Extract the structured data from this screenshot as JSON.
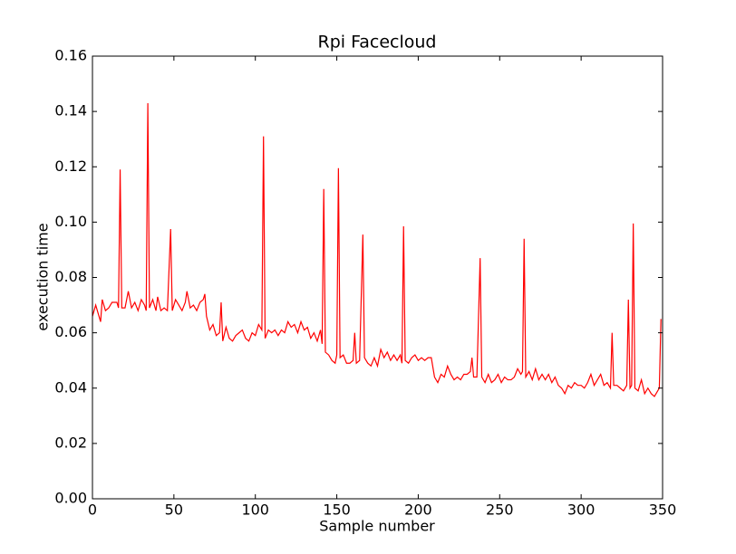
{
  "chart_data": {
    "type": "line",
    "title": "Rpi Facecloud",
    "x_label": "Sample number",
    "y_label": "execution time",
    "color": "#ff0000",
    "x": [
      0,
      2,
      4,
      5,
      6,
      8,
      10,
      12,
      15,
      16,
      17,
      18,
      20,
      22,
      24,
      26,
      28,
      30,
      32,
      33,
      34,
      35,
      37,
      39,
      40,
      42,
      44,
      46,
      48,
      49,
      51,
      53,
      55,
      57,
      58,
      60,
      62,
      64,
      66,
      68,
      69,
      70,
      72,
      74,
      76,
      78,
      79,
      80,
      82,
      84,
      86,
      88,
      90,
      92,
      94,
      96,
      98,
      100,
      102,
      104,
      105,
      106,
      108,
      110,
      112,
      114,
      116,
      118,
      120,
      122,
      124,
      126,
      128,
      130,
      132,
      134,
      136,
      138,
      140,
      141,
      142,
      143,
      145,
      147,
      149,
      150,
      151,
      152,
      154,
      156,
      158,
      160,
      161,
      162,
      164,
      166,
      167,
      169,
      171,
      173,
      175,
      177,
      179,
      181,
      183,
      185,
      187,
      189,
      190,
      191,
      192,
      194,
      196,
      198,
      200,
      202,
      204,
      206,
      208,
      210,
      212,
      214,
      216,
      218,
      220,
      222,
      224,
      226,
      228,
      230,
      232,
      233,
      234,
      236,
      238,
      239,
      241,
      243,
      245,
      247,
      249,
      251,
      253,
      255,
      257,
      259,
      261,
      263,
      264,
      265,
      266,
      268,
      270,
      272,
      274,
      276,
      278,
      280,
      282,
      284,
      286,
      288,
      290,
      292,
      294,
      296,
      298,
      300,
      302,
      304,
      306,
      308,
      310,
      312,
      314,
      316,
      318,
      319,
      320,
      322,
      324,
      326,
      328,
      329,
      330,
      331,
      332,
      333,
      335,
      337,
      339,
      341,
      343,
      345,
      347,
      348,
      349
    ],
    "values": [
      0.066,
      0.07,
      0.066,
      0.064,
      0.072,
      0.068,
      0.069,
      0.071,
      0.071,
      0.069,
      0.119,
      0.069,
      0.069,
      0.075,
      0.069,
      0.071,
      0.068,
      0.072,
      0.07,
      0.068,
      0.143,
      0.069,
      0.072,
      0.068,
      0.073,
      0.068,
      0.069,
      0.068,
      0.0975,
      0.068,
      0.072,
      0.07,
      0.068,
      0.071,
      0.075,
      0.069,
      0.07,
      0.068,
      0.071,
      0.072,
      0.074,
      0.066,
      0.061,
      0.063,
      0.059,
      0.06,
      0.071,
      0.057,
      0.062,
      0.058,
      0.057,
      0.059,
      0.06,
      0.061,
      0.058,
      0.057,
      0.06,
      0.059,
      0.063,
      0.061,
      0.131,
      0.058,
      0.061,
      0.06,
      0.061,
      0.059,
      0.061,
      0.06,
      0.064,
      0.062,
      0.063,
      0.06,
      0.064,
      0.061,
      0.062,
      0.058,
      0.06,
      0.057,
      0.061,
      0.056,
      0.112,
      0.053,
      0.052,
      0.05,
      0.049,
      0.052,
      0.1195,
      0.051,
      0.052,
      0.049,
      0.049,
      0.05,
      0.06,
      0.049,
      0.05,
      0.0955,
      0.051,
      0.049,
      0.048,
      0.051,
      0.048,
      0.054,
      0.051,
      0.053,
      0.05,
      0.052,
      0.05,
      0.052,
      0.049,
      0.0985,
      0.05,
      0.049,
      0.051,
      0.052,
      0.05,
      0.051,
      0.05,
      0.051,
      0.051,
      0.044,
      0.042,
      0.045,
      0.044,
      0.048,
      0.045,
      0.043,
      0.044,
      0.043,
      0.045,
      0.045,
      0.046,
      0.051,
      0.044,
      0.044,
      0.087,
      0.044,
      0.042,
      0.045,
      0.042,
      0.043,
      0.045,
      0.042,
      0.044,
      0.043,
      0.043,
      0.044,
      0.047,
      0.045,
      0.046,
      0.094,
      0.044,
      0.046,
      0.043,
      0.047,
      0.043,
      0.045,
      0.043,
      0.045,
      0.042,
      0.044,
      0.041,
      0.04,
      0.038,
      0.041,
      0.04,
      0.042,
      0.041,
      0.041,
      0.04,
      0.042,
      0.045,
      0.041,
      0.043,
      0.045,
      0.041,
      0.042,
      0.04,
      0.06,
      0.041,
      0.041,
      0.04,
      0.039,
      0.041,
      0.072,
      0.04,
      0.041,
      0.0995,
      0.04,
      0.039,
      0.043,
      0.038,
      0.04,
      0.038,
      0.037,
      0.039,
      0.04,
      0.065
    ],
    "xlim": [
      0,
      350
    ],
    "ylim": [
      0,
      0.16
    ],
    "xticks": [
      0,
      50,
      100,
      150,
      200,
      250,
      300,
      350
    ],
    "yticks": [
      {
        "value": 0,
        "label": "0.00"
      },
      {
        "value": 0.02,
        "label": "0.02"
      },
      {
        "value": 0.04,
        "label": "0.04"
      },
      {
        "value": 0.06,
        "label": "0.06"
      },
      {
        "value": 0.08,
        "label": "0.08"
      },
      {
        "value": 0.1,
        "label": "0.10"
      },
      {
        "value": 0.12,
        "label": "0.12"
      },
      {
        "value": 0.14,
        "label": "0.14"
      },
      {
        "value": 0.16,
        "label": "0.16"
      }
    ]
  }
}
